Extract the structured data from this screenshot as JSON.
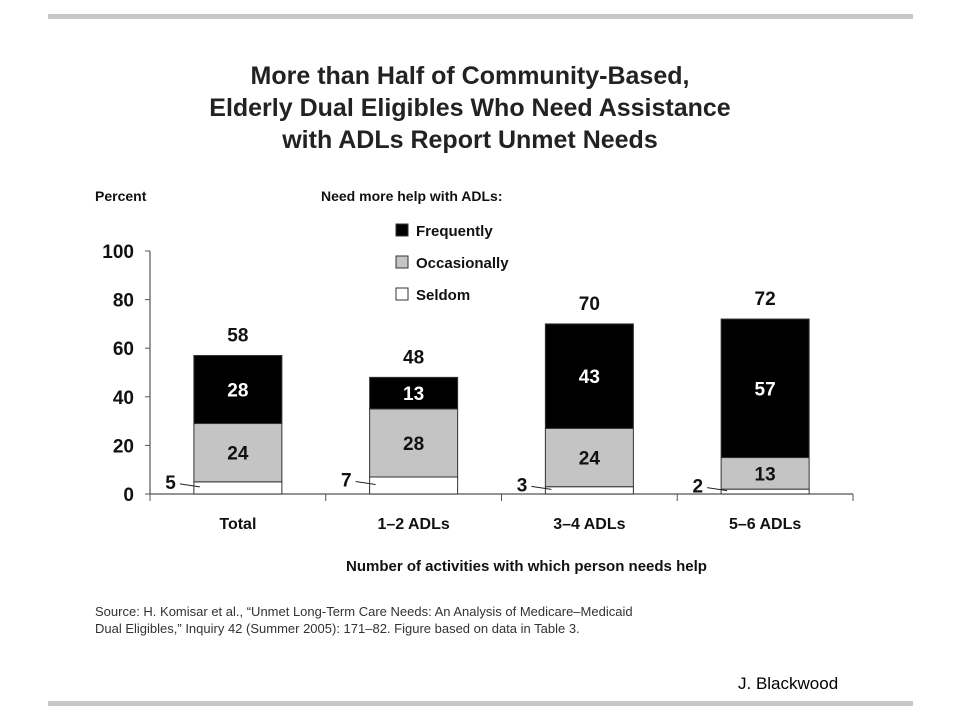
{
  "slide": {
    "title_lines": [
      "More than Half of Community-Based,",
      "Elderly Dual Eligibles Who Need Assistance",
      "with ADLs Report Unmet Needs"
    ],
    "source_lines": [
      "Source: H. Komisar et al., “Unmet Long-Term Care Needs: An Analysis of Medicare–Medicaid",
      "Dual Eligibles,” Inquiry 42 (Summer 2005): 171–82. Figure based on data in Table 3."
    ],
    "attribution": "J. Blackwood"
  },
  "chart_data": {
    "type": "bar",
    "stacked": true,
    "ylabel": "Percent",
    "xlabel": "Number of activities with which person needs help",
    "legend_title": "Need more help with ADLs:",
    "ylim": [
      0,
      100
    ],
    "yticks": [
      0,
      20,
      40,
      60,
      80,
      100
    ],
    "categories": [
      "Total",
      "1–2 ADLs",
      "3–4 ADLs",
      "5–6 ADLs"
    ],
    "series": [
      {
        "name": "Seldom",
        "values": [
          5,
          7,
          3,
          2
        ],
        "color": "#ffffff"
      },
      {
        "name": "Occasionally",
        "values": [
          24,
          28,
          24,
          13
        ],
        "color": "#c4c4c4"
      },
      {
        "name": "Frequently",
        "values": [
          28,
          13,
          43,
          57
        ],
        "color": "#000000"
      }
    ],
    "totals": [
      58,
      48,
      70,
      72
    ],
    "legend_order": [
      "Frequently",
      "Occasionally",
      "Seldom"
    ]
  }
}
